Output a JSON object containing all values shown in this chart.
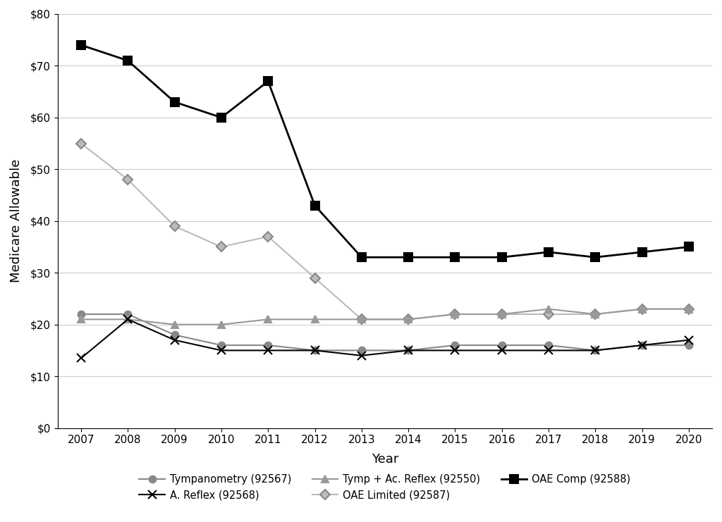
{
  "years": [
    2007,
    2008,
    2009,
    2010,
    2011,
    2012,
    2013,
    2014,
    2015,
    2016,
    2017,
    2018,
    2019,
    2020
  ],
  "series": {
    "Tympanometry (92567)": {
      "values": [
        22,
        22,
        18,
        16,
        16,
        15,
        15,
        15,
        16,
        16,
        16,
        15,
        16,
        16
      ],
      "color": "#888888",
      "marker": "o",
      "markersize": 7,
      "linewidth": 1.5,
      "zorder": 3,
      "markerfacecolor": "#888888",
      "markeredgecolor": "#888888"
    },
    "A. Reflex (92568)": {
      "values": [
        13.5,
        21,
        17,
        15,
        15,
        15,
        14,
        15,
        15,
        15,
        15,
        15,
        16,
        17
      ],
      "color": "#000000",
      "marker": "x",
      "markersize": 9,
      "linewidth": 1.5,
      "zorder": 4,
      "markerfacecolor": "none",
      "markeredgecolor": "#000000"
    },
    "Tymp + Ac. Reflex (92550)": {
      "values": [
        21,
        21,
        20,
        20,
        21,
        21,
        21,
        21,
        22,
        22,
        23,
        22,
        23,
        23
      ],
      "color": "#999999",
      "marker": "^",
      "markersize": 7,
      "linewidth": 1.5,
      "zorder": 3,
      "markerfacecolor": "#999999",
      "markeredgecolor": "#999999"
    },
    "OAE Limited (92587)": {
      "values": [
        55,
        48,
        39,
        35,
        37,
        29,
        21,
        21,
        22,
        22,
        22,
        22,
        23,
        23
      ],
      "color": "#bbbbbb",
      "marker": "D",
      "markersize": 7,
      "linewidth": 1.5,
      "zorder": 2,
      "markerfacecolor": "#bbbbbb",
      "markeredgecolor": "#888888"
    },
    "OAE Comp (92588)": {
      "values": [
        74,
        71,
        63,
        60,
        67,
        43,
        33,
        33,
        33,
        33,
        34,
        33,
        34,
        35
      ],
      "color": "#000000",
      "marker": "s",
      "markersize": 8,
      "linewidth": 2.0,
      "zorder": 5,
      "markerfacecolor": "#000000",
      "markeredgecolor": "#000000"
    }
  },
  "xlabel": "Year",
  "ylabel": "Medicare Allowable",
  "ylim": [
    0,
    80
  ],
  "yticks": [
    0,
    10,
    20,
    30,
    40,
    50,
    60,
    70,
    80
  ],
  "ytick_labels": [
    "$0",
    "$10",
    "$20",
    "$30",
    "$40",
    "$50",
    "$60",
    "$70",
    "$80"
  ],
  "xlim": [
    2006.5,
    2020.5
  ],
  "background_color": "#ffffff",
  "grid_color": "#cccccc",
  "legend_order": [
    "Tympanometry (92567)",
    "A. Reflex (92568)",
    "Tymp + Ac. Reflex (92550)",
    "OAE Limited (92587)",
    "OAE Comp (92588)"
  ]
}
